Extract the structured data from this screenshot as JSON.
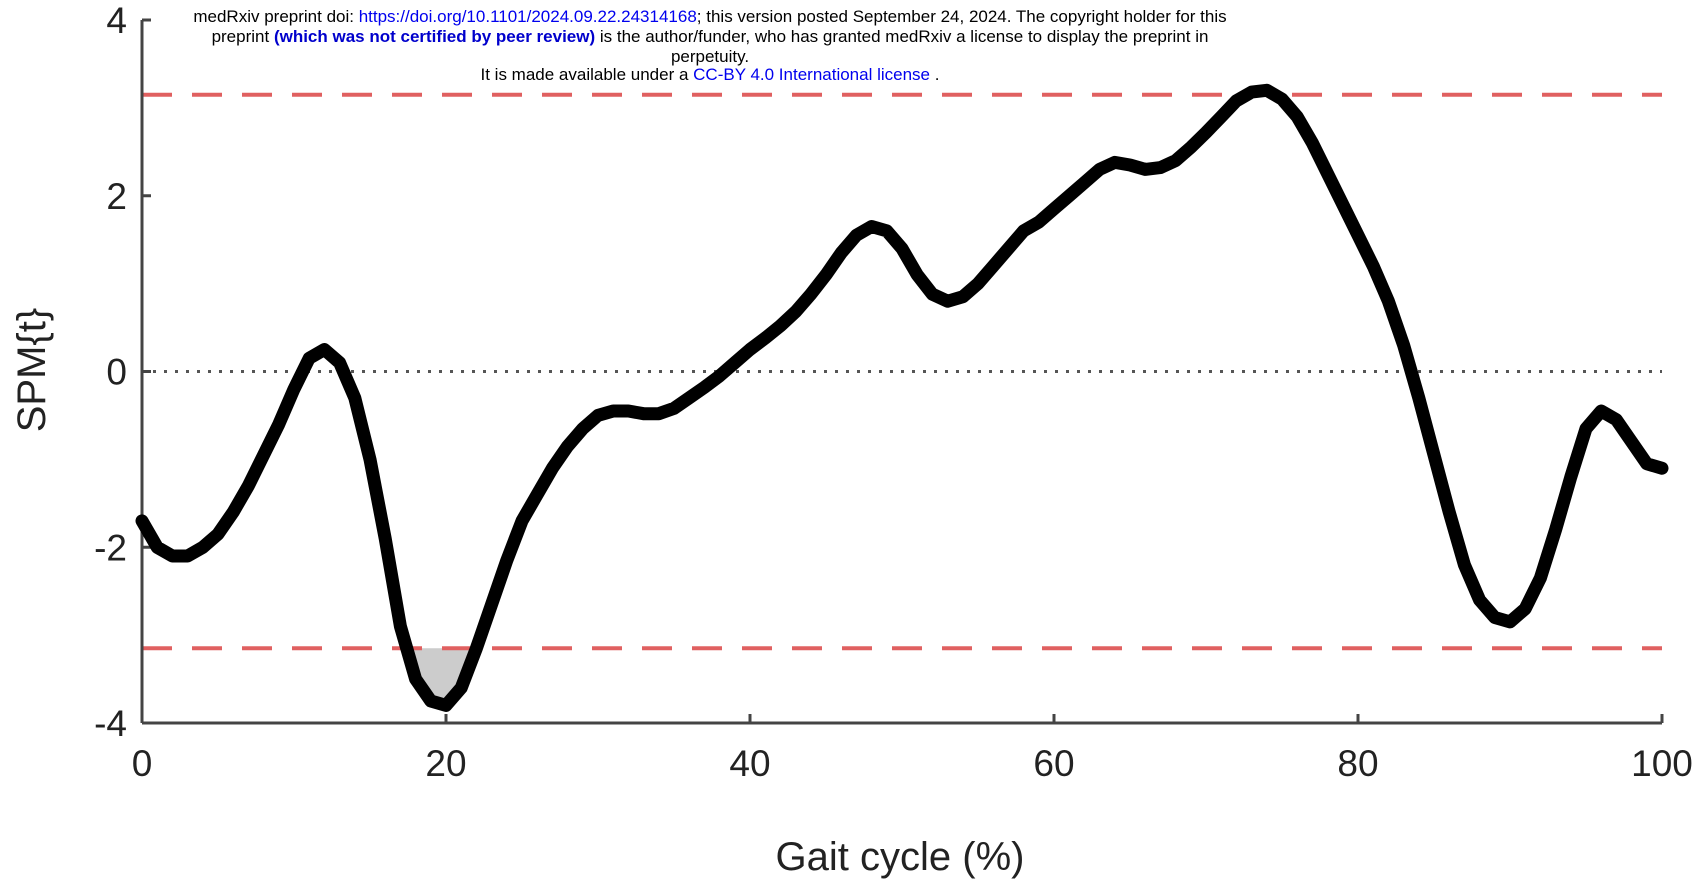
{
  "preprint_notice": {
    "line1_prefix": "medRxiv preprint doi: ",
    "doi_link": "https://doi.org/10.1101/2024.09.22.24314168",
    "line1_suffix": "; this version posted September 24, 2024. The copyright holder for this",
    "line2_prefix": "preprint ",
    "line2_bold": "(which was not certified by peer review)",
    "line2_suffix": " is the author/funder, who has granted medRxiv a license to display the preprint in",
    "line3": "perpetuity.",
    "line4_prefix": "It is made available under a ",
    "license_link": "CC-BY 4.0 International license",
    "line4_suffix": " ."
  },
  "chart_data": {
    "type": "line",
    "title": "",
    "xlabel": "Gait cycle (%)",
    "ylabel": "SPM{t}",
    "xlim": [
      0,
      100
    ],
    "ylim": [
      -4,
      4
    ],
    "x_ticks": [
      0,
      20,
      40,
      60,
      80,
      100
    ],
    "y_ticks": [
      -4,
      -2,
      0,
      2,
      4
    ],
    "threshold": 3.15,
    "zero_line": 0,
    "grid": false,
    "colors": {
      "curve": "#000000",
      "threshold": "#e06060",
      "zero_line": "#555555",
      "cluster_fill": "#cccccc",
      "axis": "#444444"
    },
    "series": [
      {
        "x": [
          0,
          1,
          2,
          3,
          4,
          5,
          6,
          7,
          8,
          9,
          10,
          11,
          12,
          13,
          14,
          15,
          16,
          17,
          18,
          19,
          20,
          21,
          22,
          23,
          24,
          25,
          26,
          27,
          28,
          29,
          30,
          31,
          32,
          33,
          34,
          35,
          36,
          37,
          38,
          39,
          40,
          41,
          42,
          43,
          44,
          45,
          46,
          47,
          48,
          49,
          50,
          51,
          52,
          53,
          54,
          55,
          56,
          57,
          58,
          59,
          60,
          61,
          62,
          63,
          64,
          65,
          66,
          67,
          68,
          69,
          70,
          71,
          72,
          73,
          74,
          75,
          76,
          77,
          78,
          79,
          80,
          81,
          82,
          83,
          84,
          85,
          86,
          87,
          88,
          89,
          90,
          91,
          92,
          93,
          94,
          95,
          96,
          97,
          98,
          99,
          100
        ],
        "y": [
          -1.7,
          -2.0,
          -2.1,
          -2.1,
          -2.0,
          -1.85,
          -1.6,
          -1.3,
          -0.95,
          -0.6,
          -0.2,
          0.15,
          0.25,
          0.1,
          -0.3,
          -1.0,
          -1.9,
          -2.9,
          -3.5,
          -3.75,
          -3.8,
          -3.6,
          -3.15,
          -2.65,
          -2.15,
          -1.7,
          -1.4,
          -1.1,
          -0.85,
          -0.65,
          -0.5,
          -0.45,
          -0.45,
          -0.48,
          -0.48,
          -0.42,
          -0.3,
          -0.18,
          -0.05,
          0.1,
          0.25,
          0.38,
          0.52,
          0.68,
          0.88,
          1.1,
          1.35,
          1.55,
          1.65,
          1.6,
          1.4,
          1.1,
          0.88,
          0.8,
          0.85,
          1.0,
          1.2,
          1.4,
          1.6,
          1.7,
          1.85,
          2.0,
          2.15,
          2.3,
          2.38,
          2.35,
          2.3,
          2.32,
          2.4,
          2.55,
          2.72,
          2.9,
          3.08,
          3.18,
          3.2,
          3.1,
          2.9,
          2.6,
          2.25,
          1.9,
          1.55,
          1.2,
          0.8,
          0.3,
          -0.3,
          -0.95,
          -1.6,
          -2.2,
          -2.6,
          -2.8,
          -2.85,
          -2.7,
          -2.35,
          -1.8,
          -1.2,
          -0.65,
          -0.45,
          -0.55,
          -0.8,
          -1.05,
          -1.1
        ]
      }
    ]
  }
}
